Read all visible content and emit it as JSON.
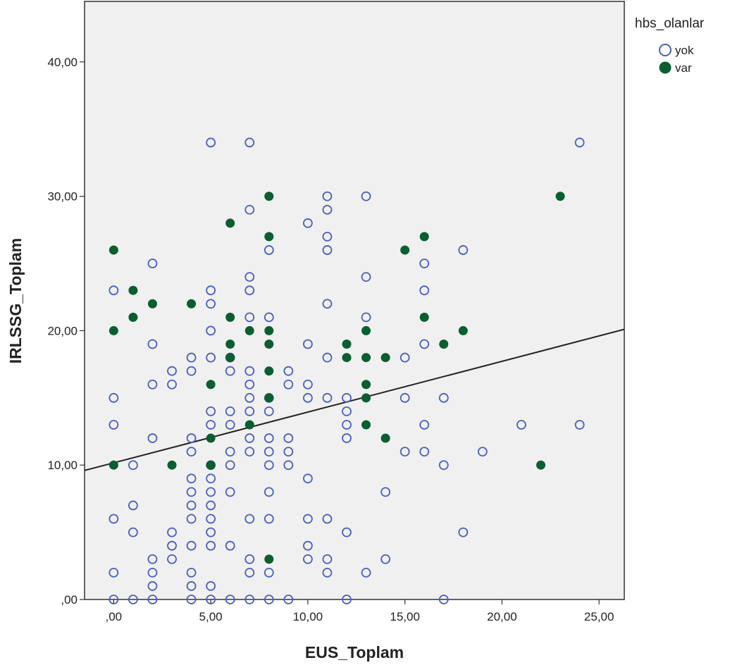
{
  "chart_data": {
    "type": "scatter",
    "xlabel": "EUS_Toplam",
    "ylabel": "IRLSSG_Toplam",
    "xlim": [
      -1.5,
      26.3
    ],
    "ylim": [
      0,
      44.5
    ],
    "x_ticks": [
      0,
      5,
      10,
      15,
      20,
      25
    ],
    "x_tick_labels": [
      ",00",
      "5,00",
      "10,00",
      "15,00",
      "20,00",
      "25,00"
    ],
    "y_ticks": [
      0,
      10,
      20,
      30,
      40
    ],
    "y_tick_labels": [
      ",00",
      "10,00",
      "20,00",
      "30,00",
      "40,00"
    ],
    "grid": false,
    "legend": {
      "title": "hbs_olanlar",
      "placement": "top-right-outside",
      "entries": [
        {
          "label": "yok",
          "marker": "open-circle",
          "color": "#4a5fc1"
        },
        {
          "label": "var",
          "marker": "filled-circle",
          "color": "#0b5e2f"
        }
      ]
    },
    "fit_line": {
      "x": [
        -1.5,
        26.3
      ],
      "y": [
        9.6,
        20.1
      ],
      "color": "#222222"
    },
    "series": [
      {
        "name": "yok",
        "marker": "open-circle",
        "color": "#4a5fc1",
        "points": [
          [
            5,
            34
          ],
          [
            7,
            34
          ],
          [
            24,
            34
          ],
          [
            11,
            30
          ],
          [
            13,
            30
          ],
          [
            7,
            29
          ],
          [
            11,
            29
          ],
          [
            10,
            28
          ],
          [
            11,
            27
          ],
          [
            8,
            26
          ],
          [
            11,
            26
          ],
          [
            18,
            26
          ],
          [
            2,
            25
          ],
          [
            16,
            25
          ],
          [
            7,
            24
          ],
          [
            13,
            24
          ],
          [
            0,
            23
          ],
          [
            5,
            23
          ],
          [
            7,
            23
          ],
          [
            16,
            23
          ],
          [
            5,
            22
          ],
          [
            11,
            22
          ],
          [
            7,
            21
          ],
          [
            8,
            21
          ],
          [
            13,
            21
          ],
          [
            5,
            20
          ],
          [
            2,
            19
          ],
          [
            10,
            19
          ],
          [
            16,
            19
          ],
          [
            4,
            18
          ],
          [
            5,
            18
          ],
          [
            6,
            18
          ],
          [
            11,
            18
          ],
          [
            15,
            18
          ],
          [
            3,
            17
          ],
          [
            4,
            17
          ],
          [
            6,
            17
          ],
          [
            7,
            17
          ],
          [
            9,
            17
          ],
          [
            2,
            16
          ],
          [
            3,
            16
          ],
          [
            7,
            16
          ],
          [
            9,
            16
          ],
          [
            10,
            16
          ],
          [
            0,
            15
          ],
          [
            7,
            15
          ],
          [
            8,
            15
          ],
          [
            10,
            15
          ],
          [
            11,
            15
          ],
          [
            12,
            15
          ],
          [
            15,
            15
          ],
          [
            17,
            15
          ],
          [
            5,
            14
          ],
          [
            6,
            14
          ],
          [
            7,
            14
          ],
          [
            8,
            14
          ],
          [
            12,
            14
          ],
          [
            0,
            13
          ],
          [
            5,
            13
          ],
          [
            6,
            13
          ],
          [
            12,
            13
          ],
          [
            16,
            13
          ],
          [
            21,
            13
          ],
          [
            24,
            13
          ],
          [
            2,
            12
          ],
          [
            4,
            12
          ],
          [
            7,
            12
          ],
          [
            8,
            12
          ],
          [
            9,
            12
          ],
          [
            12,
            12
          ],
          [
            4,
            11
          ],
          [
            6,
            11
          ],
          [
            7,
            11
          ],
          [
            8,
            11
          ],
          [
            9,
            11
          ],
          [
            15,
            11
          ],
          [
            16,
            11
          ],
          [
            19,
            11
          ],
          [
            1,
            10
          ],
          [
            5,
            10
          ],
          [
            6,
            10
          ],
          [
            8,
            10
          ],
          [
            9,
            10
          ],
          [
            17,
            10
          ],
          [
            4,
            9
          ],
          [
            5,
            9
          ],
          [
            10,
            9
          ],
          [
            4,
            8
          ],
          [
            5,
            8
          ],
          [
            6,
            8
          ],
          [
            8,
            8
          ],
          [
            14,
            8
          ],
          [
            1,
            7
          ],
          [
            4,
            7
          ],
          [
            5,
            7
          ],
          [
            0,
            6
          ],
          [
            4,
            6
          ],
          [
            5,
            6
          ],
          [
            7,
            6
          ],
          [
            8,
            6
          ],
          [
            10,
            6
          ],
          [
            11,
            6
          ],
          [
            1,
            5
          ],
          [
            3,
            5
          ],
          [
            5,
            5
          ],
          [
            12,
            5
          ],
          [
            18,
            5
          ],
          [
            3,
            4
          ],
          [
            4,
            4
          ],
          [
            5,
            4
          ],
          [
            6,
            4
          ],
          [
            10,
            4
          ],
          [
            2,
            3
          ],
          [
            3,
            3
          ],
          [
            7,
            3
          ],
          [
            10,
            3
          ],
          [
            11,
            3
          ],
          [
            14,
            3
          ],
          [
            0,
            2
          ],
          [
            2,
            2
          ],
          [
            4,
            2
          ],
          [
            7,
            2
          ],
          [
            8,
            2
          ],
          [
            11,
            2
          ],
          [
            13,
            2
          ],
          [
            2,
            1
          ],
          [
            4,
            1
          ],
          [
            5,
            1
          ],
          [
            0,
            0
          ],
          [
            1,
            0
          ],
          [
            2,
            0
          ],
          [
            4,
            0
          ],
          [
            5,
            0
          ],
          [
            6,
            0
          ],
          [
            7,
            0
          ],
          [
            8,
            0
          ],
          [
            9,
            0
          ],
          [
            12,
            0
          ],
          [
            17,
            0
          ]
        ]
      },
      {
        "name": "var",
        "marker": "filled-circle",
        "color": "#0b5e2f",
        "points": [
          [
            8,
            30
          ],
          [
            23,
            30
          ],
          [
            6,
            28
          ],
          [
            8,
            27
          ],
          [
            16,
            27
          ],
          [
            0,
            26
          ],
          [
            15,
            26
          ],
          [
            1,
            23
          ],
          [
            2,
            22
          ],
          [
            4,
            22
          ],
          [
            1,
            21
          ],
          [
            6,
            21
          ],
          [
            16,
            21
          ],
          [
            0,
            20
          ],
          [
            7,
            20
          ],
          [
            8,
            20
          ],
          [
            13,
            20
          ],
          [
            18,
            20
          ],
          [
            6,
            19
          ],
          [
            8,
            19
          ],
          [
            12,
            19
          ],
          [
            17,
            19
          ],
          [
            6,
            18
          ],
          [
            12,
            18
          ],
          [
            13,
            18
          ],
          [
            14,
            18
          ],
          [
            8,
            17
          ],
          [
            5,
            16
          ],
          [
            13,
            16
          ],
          [
            8,
            15
          ],
          [
            13,
            15
          ],
          [
            7,
            13
          ],
          [
            13,
            13
          ],
          [
            5,
            12
          ],
          [
            14,
            12
          ],
          [
            0,
            10
          ],
          [
            3,
            10
          ],
          [
            5,
            10
          ],
          [
            22,
            10
          ],
          [
            8,
            3
          ]
        ]
      }
    ]
  }
}
